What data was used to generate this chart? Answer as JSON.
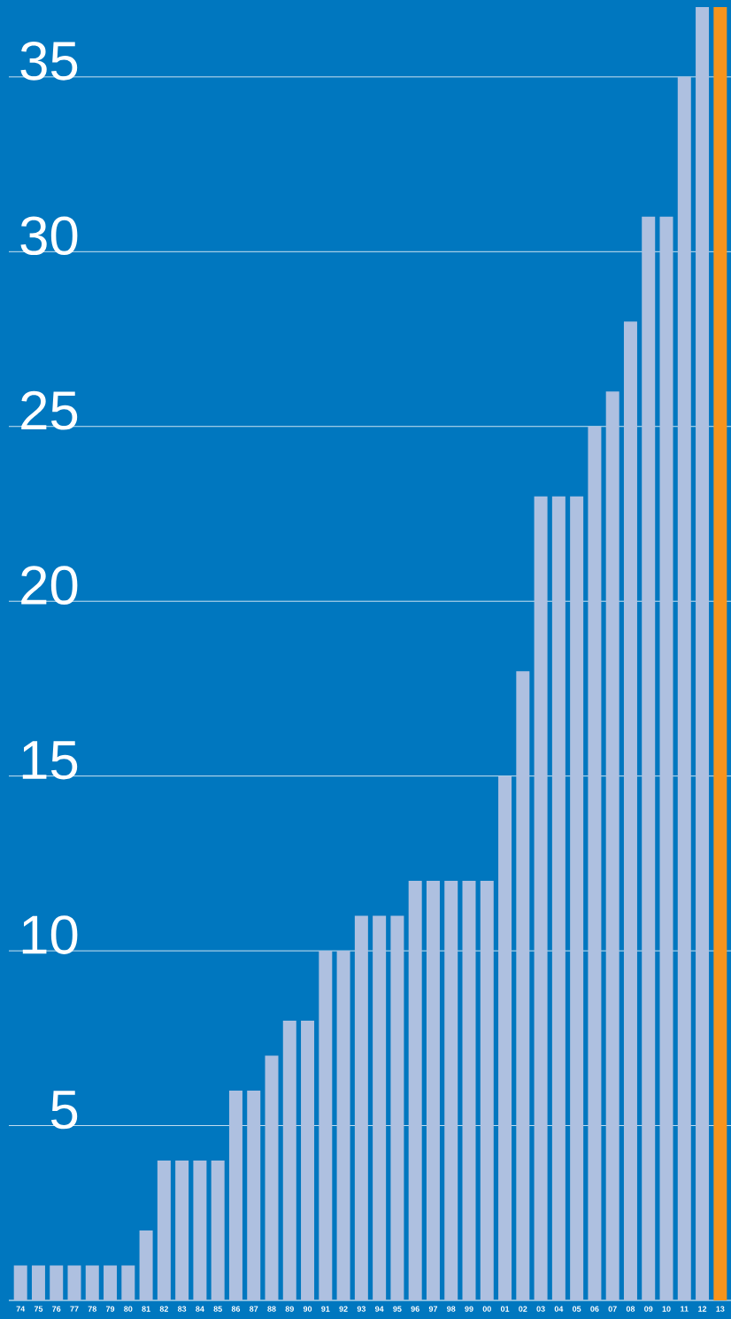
{
  "chart_data": {
    "type": "bar",
    "categories": [
      "74",
      "75",
      "76",
      "77",
      "78",
      "79",
      "80",
      "81",
      "82",
      "83",
      "84",
      "85",
      "86",
      "87",
      "88",
      "89",
      "90",
      "91",
      "92",
      "93",
      "94",
      "95",
      "96",
      "97",
      "98",
      "99",
      "00",
      "01",
      "02",
      "03",
      "04",
      "05",
      "06",
      "07",
      "08",
      "09",
      "10",
      "11",
      "12",
      "13"
    ],
    "values": [
      1,
      1,
      1,
      1,
      1,
      1,
      1,
      2,
      4,
      4,
      4,
      4,
      6,
      6,
      7,
      8,
      8,
      10,
      10,
      11,
      11,
      11,
      12,
      12,
      12,
      12,
      12,
      15,
      18,
      23,
      23,
      23,
      25,
      26,
      28,
      31,
      31,
      35,
      37,
      37
    ],
    "colors": [
      "#aec0e0",
      "#aec0e0",
      "#aec0e0",
      "#aec0e0",
      "#aec0e0",
      "#aec0e0",
      "#aec0e0",
      "#aec0e0",
      "#aec0e0",
      "#aec0e0",
      "#aec0e0",
      "#aec0e0",
      "#aec0e0",
      "#aec0e0",
      "#aec0e0",
      "#aec0e0",
      "#aec0e0",
      "#aec0e0",
      "#aec0e0",
      "#aec0e0",
      "#aec0e0",
      "#aec0e0",
      "#aec0e0",
      "#aec0e0",
      "#aec0e0",
      "#aec0e0",
      "#aec0e0",
      "#aec0e0",
      "#aec0e0",
      "#aec0e0",
      "#aec0e0",
      "#aec0e0",
      "#aec0e0",
      "#aec0e0",
      "#aec0e0",
      "#aec0e0",
      "#aec0e0",
      "#aec0e0",
      "#aec0e0",
      "#f7941d"
    ],
    "ylim": [
      0,
      37.2
    ],
    "yticks": [
      5,
      10,
      15,
      20,
      25,
      30,
      35
    ],
    "grid": "y"
  }
}
